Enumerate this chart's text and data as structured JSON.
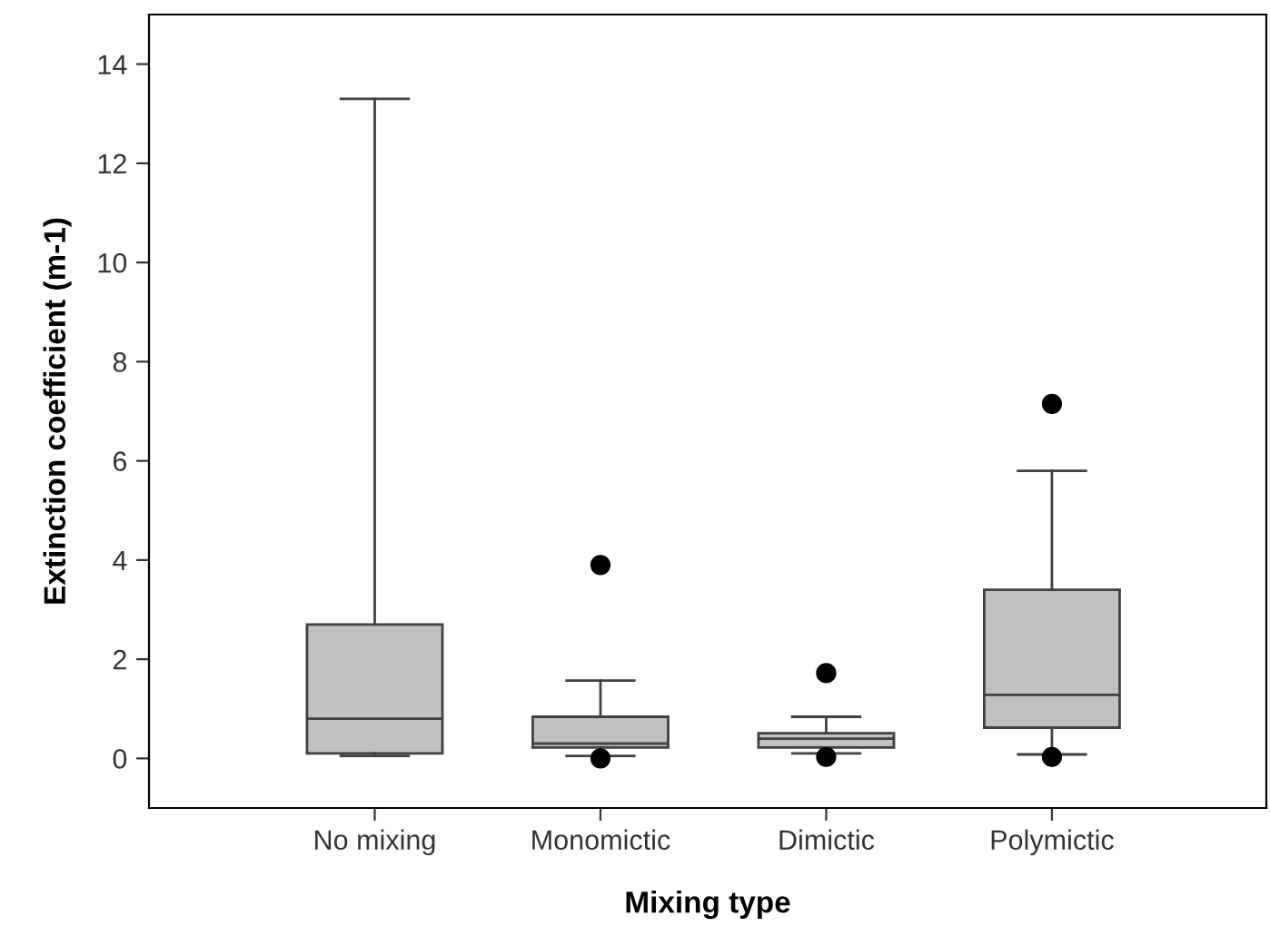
{
  "chart_data": {
    "type": "box",
    "xlabel": "Mixing type",
    "ylabel": "Extinction coefficient (m-1)",
    "categories": [
      "No mixing",
      "Monomictic",
      "Dimictic",
      "Polymictic"
    ],
    "color": "#c0c0c0",
    "boxes": [
      {
        "low": 0.05,
        "q1": 0.1,
        "median": 0.8,
        "q3": 2.7,
        "high": 13.3
      },
      {
        "low": 0.05,
        "q1": 0.22,
        "median": 0.3,
        "q3": 0.84,
        "high": 1.57,
        "outliers": [
          3.9,
          0.0
        ]
      },
      {
        "low": 0.1,
        "q1": 0.22,
        "median": 0.4,
        "q3": 0.51,
        "high": 0.84,
        "outliers": [
          1.72,
          0.03
        ]
      },
      {
        "low": 0.08,
        "q1": 0.62,
        "median": 1.28,
        "q3": 3.4,
        "high": 5.8,
        "outliers": [
          7.15,
          0.03
        ]
      }
    ],
    "ylim": [
      -1,
      15
    ],
    "yticks": [
      0,
      2,
      4,
      6,
      8,
      10,
      12,
      14
    ],
    "grid": false
  }
}
